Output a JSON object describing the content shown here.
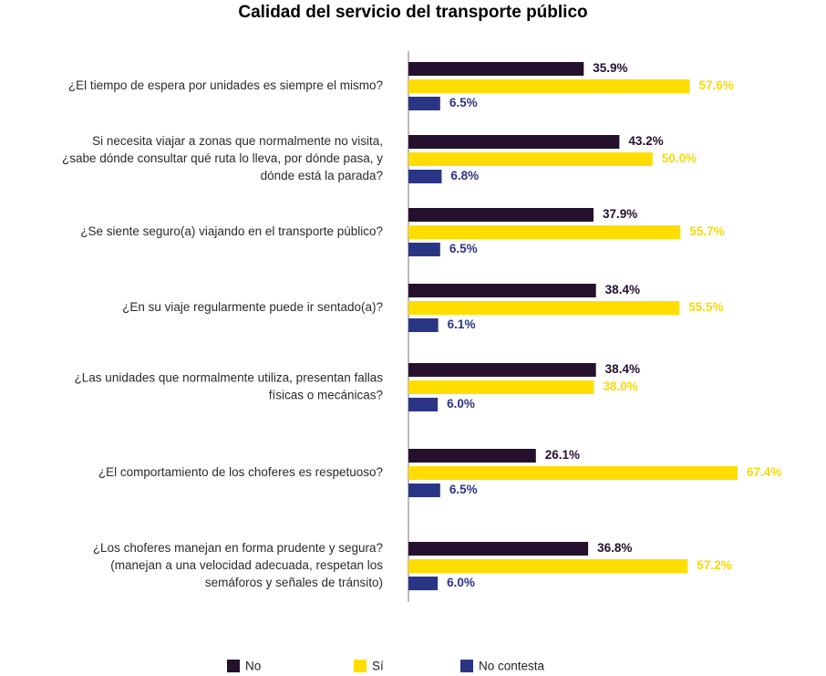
{
  "chart_data": {
    "type": "bar",
    "orientation": "horizontal",
    "title": "Calidad del servicio del transporte público",
    "categories": [
      [
        "¿El tiempo de espera por unidades es siempre el mismo?"
      ],
      [
        "Si necesita viajar a zonas que normalmente no visita,",
        "¿sabe dónde consultar qué ruta lo lleva, por dónde pasa, y",
        "dónde está la parada?"
      ],
      [
        "¿Se siente seguro(a) viajando en el transporte público?"
      ],
      [
        "¿En su viaje regularmente puede ir sentado(a)?"
      ],
      [
        "¿Las unidades que normalmente utiliza, presentan fallas",
        "físicas o mecánicas?"
      ],
      [
        "¿El comportamiento de los choferes es respetuoso?"
      ],
      [
        "¿Los choferes manejan en forma prudente y segura?",
        "(manejan a una velocidad adecuada, respetan los",
        "semáforos y señales de tránsito)"
      ]
    ],
    "series": [
      {
        "name": "No",
        "color": "#25102e",
        "label_color": "#25102e",
        "values": [
          35.9,
          43.2,
          37.9,
          38.4,
          38.4,
          26.1,
          36.8
        ],
        "labels": [
          "35.9%",
          "43.2%",
          "37.9%",
          "38.4%",
          "38.4%",
          "26.1%",
          "36.8%"
        ]
      },
      {
        "name": "Sí",
        "color": "#ffdd00",
        "label_color": "#f5d90a",
        "values": [
          57.6,
          50.0,
          55.7,
          55.5,
          38.0,
          67.4,
          57.2
        ],
        "labels": [
          "57.6%",
          "50.0%",
          "55.7%",
          "55.5%",
          "38.0%",
          "67.4%",
          "57.2%"
        ]
      },
      {
        "name": "No contesta",
        "color": "#2b3585",
        "label_color": "#2b3585",
        "values": [
          6.5,
          6.8,
          6.5,
          6.1,
          6.0,
          6.5,
          6.0
        ],
        "labels": [
          "6.5%",
          "6.8%",
          "6.5%",
          "6.1%",
          "6.0%",
          "6.5%",
          "6.0%"
        ]
      }
    ],
    "xlim": [
      0,
      67.4
    ],
    "grid": false,
    "legend_position": "bottom",
    "axis_color": "#bbbbbb"
  }
}
